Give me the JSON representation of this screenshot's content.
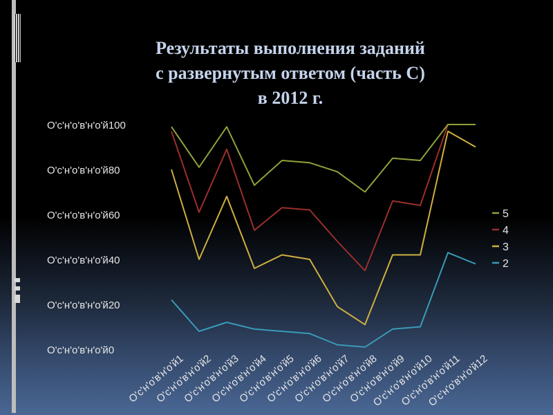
{
  "slide": {
    "title_lines": [
      "Результаты выполнения заданий",
      "с развернутым ответом (часть С)",
      "в 2012 г."
    ]
  },
  "chart_data": {
    "type": "line",
    "categories": [
      "О'с'н'о'в'н'о'й1",
      "О'с'н'о'в'н'о'й2",
      "О'с'н'о'в'н'о'й3",
      "О'с'н'о'в'н'о'й4",
      "О'с'н'о'в'н'о'й5",
      "О'с'н'о'в'н'о'й6",
      "О'с'н'о'в'н'о'й7",
      "О'с'н'о'в'н'о'й8",
      "О'с'н'о'в'н'о'й9",
      "О'с'н'о'в'н'о'й10",
      "О'с'н'о'в'н'о'й11",
      "О'с'н'о'в'н'о'й12"
    ],
    "y_tick_labels": [
      "О'с'н'о'в'н'о'й0",
      "О'с'н'о'в'н'о'й20",
      "О'с'н'о'в'н'о'й40",
      "О'с'н'о'в'н'о'й60",
      "О'с'н'о'в'н'о'й80",
      "О'с'н'о'в'н'о'й100"
    ],
    "y_ticks": [
      0,
      20,
      40,
      60,
      80,
      100
    ],
    "ylim": [
      0,
      100
    ],
    "grid": false,
    "legend_position": "right",
    "series": [
      {
        "name": "5",
        "color": "#8fa23a",
        "values": [
          99,
          81,
          99,
          73,
          84,
          83,
          79,
          70,
          85,
          84,
          100,
          100
        ]
      },
      {
        "name": "4",
        "color": "#9b2f2c",
        "values": [
          97,
          61,
          89,
          53,
          63,
          62,
          48,
          35,
          66,
          64,
          100,
          100
        ]
      },
      {
        "name": "3",
        "color": "#cfb040",
        "values": [
          80,
          40,
          68,
          36,
          42,
          40,
          19,
          11,
          42,
          42,
          97,
          90
        ]
      },
      {
        "name": "2",
        "color": "#3a9ab8",
        "values": [
          22,
          8,
          12,
          9,
          8,
          7,
          2,
          1,
          9,
          10,
          43,
          38
        ]
      }
    ]
  }
}
